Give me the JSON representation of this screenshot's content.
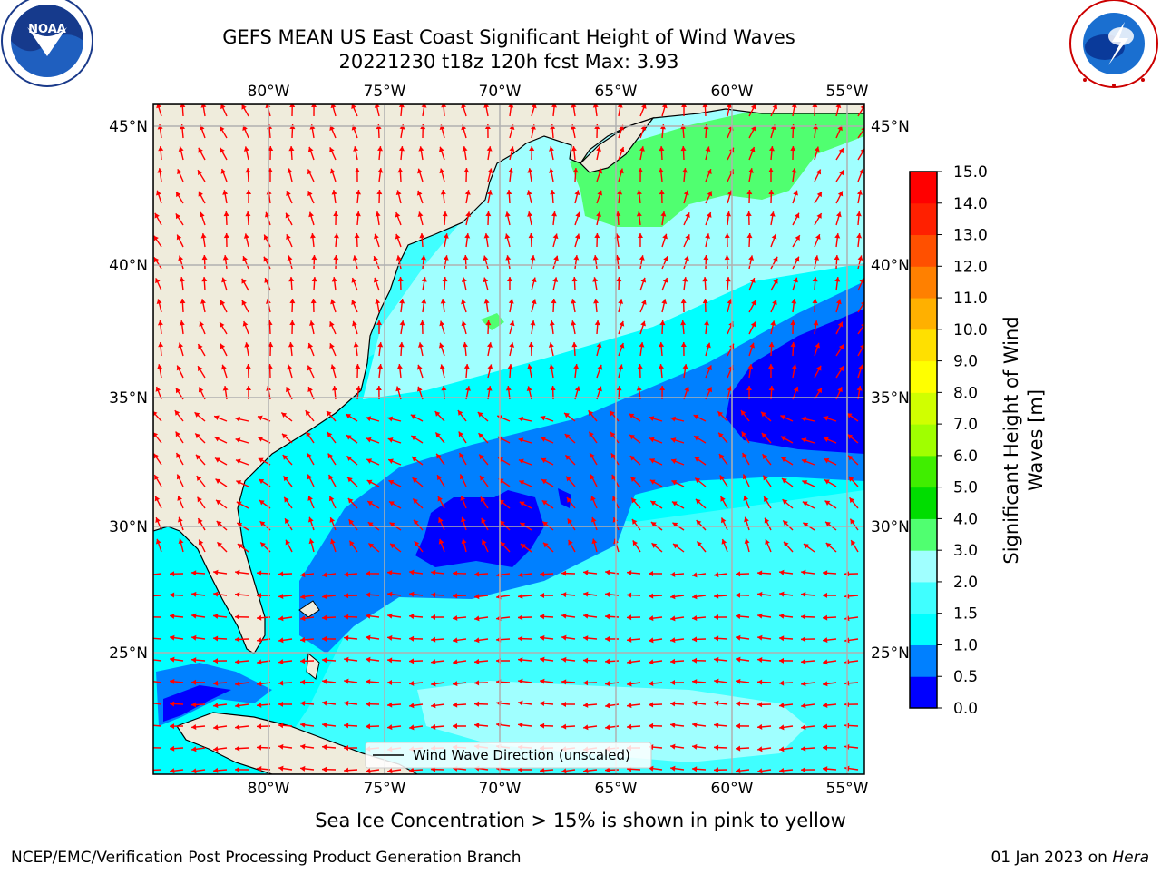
{
  "title": {
    "line1": "GEFS MEAN US East Coast Significant Height of Wind Waves",
    "line2": "20221230 t18z 120h fcst   Max: 3.93"
  },
  "logos": {
    "noaa": {
      "text": "NOAA",
      "ring_text": "NATIONAL OCEANIC AND ATMOSPHERIC ADMINISTRATION · U.S. DEPARTMENT OF COMMERCE"
    },
    "nws": {
      "ring_text": "NATIONAL WEATHER SERVICE"
    }
  },
  "map": {
    "lon_labels": [
      "80°W",
      "75°W",
      "70°W",
      "65°W",
      "60°W",
      "55°W"
    ],
    "lat_labels": [
      "45°N",
      "40°N",
      "35°N",
      "30°N",
      "25°N"
    ],
    "legend_label": "Wind Wave Direction (unscaled)",
    "colors": {
      "land": "#efecdc",
      "arrow": "#ff0000",
      "grid": "#b0b0b0"
    }
  },
  "colorbar": {
    "label_line1": "Significant Height of Wind",
    "label_line2": "Waves [m]",
    "ticks": [
      "0.0",
      "0.5",
      "1.0",
      "1.5",
      "2.0",
      "3.0",
      "4.0",
      "5.0",
      "6.0",
      "7.0",
      "8.0",
      "9.0",
      "10.0",
      "11.0",
      "12.0",
      "13.0",
      "14.0",
      "15.0"
    ],
    "colors": [
      "#0000ff",
      "#0080ff",
      "#00ffff",
      "#40ffff",
      "#a0ffff",
      "#50ff70",
      "#00dd00",
      "#40ee00",
      "#a0ff00",
      "#d0ff00",
      "#ffff00",
      "#ffe000",
      "#ffb000",
      "#ff8000",
      "#ff5000",
      "#ff2000",
      "#ff0000"
    ]
  },
  "footer": {
    "ice_note": "Sea Ice Concentration > 15% is shown in pink to yellow",
    "org": "NCEP/EMC/Verification Post Processing Product Generation Branch",
    "date_prefix": "01 Jan 2023 on ",
    "machine": "Hera"
  }
}
